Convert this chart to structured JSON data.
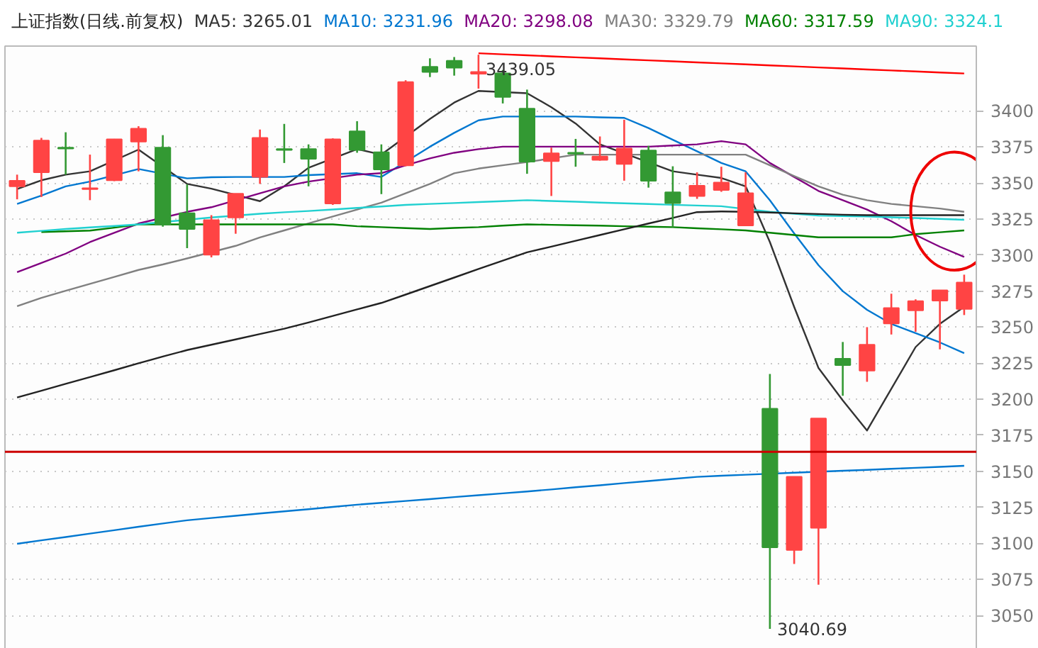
{
  "chart_data": {
    "type": "candlestick",
    "title": "上证指数(日线.前复权)",
    "grid": "y",
    "tick_labels": "y",
    "line_style": "solid",
    "categories": [
      null,
      null,
      null,
      null,
      null,
      null,
      null,
      null,
      null,
      null,
      null,
      null,
      null,
      null,
      null,
      null,
      null,
      null,
      null,
      null,
      null,
      null,
      null,
      null,
      null,
      null,
      null,
      null,
      null,
      null,
      null,
      null,
      null,
      null,
      null,
      null,
      null,
      null,
      null,
      null
    ],
    "ylim": [
      3021,
      3445
    ],
    "yticks": [
      3050,
      3075,
      3100,
      3125,
      3150,
      3175,
      3200,
      3225,
      3250,
      3275,
      3300,
      3325,
      3350,
      3375,
      3400
    ],
    "ohlc": [
      [
        3347.7,
        3355.8,
        3338.7,
        3351.6
      ],
      [
        3357.4,
        3381.3,
        3340.3,
        3379.4
      ],
      [
        3374.5,
        3385.2,
        3355.8,
        3373.9
      ],
      [
        3345.8,
        3369.7,
        3338.1,
        3346.4
      ],
      [
        3351.9,
        3380.6,
        3351.3,
        3380.3
      ],
      [
        3378.7,
        3389.4,
        3358.1,
        3387.7
      ],
      [
        3374.5,
        3383.2,
        3319.7,
        3321.3
      ],
      [
        3329.0,
        3349.0,
        3304.8,
        3318.1
      ],
      [
        3300.3,
        3327.7,
        3298.4,
        3324.2
      ],
      [
        3326.1,
        3342.6,
        3314.8,
        3342.6
      ],
      [
        3354.2,
        3387.1,
        3349.4,
        3381.3
      ],
      [
        3373.5,
        3391.0,
        3363.9,
        3372.9
      ],
      [
        3373.5,
        3376.8,
        3347.7,
        3366.8
      ],
      [
        3335.8,
        3381.0,
        3334.8,
        3380.3
      ],
      [
        3385.8,
        3392.9,
        3371.0,
        3372.9
      ],
      [
        3371.3,
        3376.8,
        3342.3,
        3359.4
      ],
      [
        3362.3,
        3421.3,
        3361.6,
        3420.0
      ],
      [
        3430.6,
        3436.5,
        3423.5,
        3427.1
      ],
      [
        3434.8,
        3437.4,
        3424.5,
        3430.0
      ],
      [
        3425.8,
        3439.05,
        3415.5,
        3427.1
      ],
      [
        3426.1,
        3428.4,
        3405.2,
        3409.7
      ],
      [
        3401.6,
        3414.8,
        3356.4,
        3364.8
      ],
      [
        3365.2,
        3374.5,
        3341.0,
        3370.6
      ],
      [
        3371.0,
        3380.6,
        3361.3,
        3370.3
      ],
      [
        3366.1,
        3382.3,
        3365.5,
        3368.4
      ],
      [
        3363.2,
        3393.9,
        3351.6,
        3373.9
      ],
      [
        3372.6,
        3375.8,
        3346.8,
        3351.6
      ],
      [
        3343.5,
        3361.6,
        3319.4,
        3336.1
      ],
      [
        3341.0,
        3357.4,
        3339.0,
        3348.1
      ],
      [
        3345.2,
        3361.3,
        3343.9,
        3350.3
      ],
      [
        3320.6,
        3357.4,
        3320.6,
        3342.9
      ],
      [
        3193.4,
        3217.5,
        3040.69,
        3097.3
      ],
      [
        3095.4,
        3146.2,
        3085.7,
        3146.2
      ],
      [
        3110.8,
        3186.7,
        3071.3,
        3186.7
      ],
      [
        3228.1,
        3239.7,
        3202.4,
        3223.6
      ],
      [
        3219.8,
        3250.0,
        3212.1,
        3237.8
      ],
      [
        3252.6,
        3273.2,
        3244.9,
        3263.2
      ],
      [
        3261.6,
        3269.3,
        3246.8,
        3268.1
      ],
      [
        3268.4,
        3275.5,
        3234.6,
        3275.5
      ],
      [
        3262.6,
        3286.4,
        3258.4,
        3280.9
      ]
    ],
    "colors": [
      "#ff4444",
      "#ff4444",
      "#339933",
      "#ff4444",
      "#ff4444",
      "#ff4444",
      "#339933",
      "#339933",
      "#ff4444",
      "#ff4444",
      "#ff4444",
      "#339933",
      "#339933",
      "#ff4444",
      "#339933",
      "#339933",
      "#ff4444",
      "#339933",
      "#339933",
      "#ff4444",
      "#339933",
      "#339933",
      "#ff4444",
      "#339933",
      "#ff4444",
      "#ff4444",
      "#339933",
      "#339933",
      "#ff4444",
      "#ff4444",
      "#ff4444",
      "#339933",
      "#ff4444",
      "#ff4444",
      "#339933",
      "#ff4444",
      "#ff4444",
      "#ff4444",
      "#ff4444",
      "#ff4444"
    ],
    "series": [
      {
        "type": "line",
        "name": "MA5: 3265.01",
        "color": "#333333",
        "values": [
          3345.8,
          3351.9,
          3355.8,
          3358.1,
          null,
          3373.2,
          null,
          3349.4,
          3346.1,
          null,
          3337.4,
          3347.7,
          3360.6,
          null,
          3373.5,
          3369.7,
          null,
          3394.5,
          3405.8,
          3413.9,
          null,
          3412.3,
          3402.6,
          3391.3,
          3376.8,
          null,
          null,
          3358.1,
          3355.8,
          3353.5,
          3347.7,
          3309,
          3264,
          3221.7,
          3199.2,
          3178.3,
          3207.2,
          3236.2,
          3252.3,
          3264.1
        ]
      },
      {
        "type": "line",
        "name": "MA10: 3231.96",
        "color": "#0077d0",
        "values": [
          3335.5,
          3341.3,
          3347.7,
          3351.0,
          null,
          3359.7,
          null,
          3353.2,
          3354.0,
          3354.2,
          null,
          3354.2,
          3355.5,
          null,
          3356.8,
          3354.2,
          null,
          3375.2,
          3384.8,
          3393.5,
          3396.1,
          null,
          3396.1,
          3396.1,
          3395.6,
          3395.2,
          3388.1,
          3380.0,
          3372.0,
          3363.9,
          3358.1,
          3338,
          3315,
          3293,
          3275,
          3262,
          3252.3,
          3245.8,
          3239.4,
          3232
        ]
      },
      {
        "type": "line",
        "name": "MA20: 3298.08",
        "color": "#800080",
        "values": [
          3288.1,
          3294.5,
          3301.0,
          3309.0,
          3315.5,
          3321.9,
          null,
          3330.0,
          3333.2,
          null,
          3342.9,
          3347.7,
          3351.0,
          null,
          3355.8,
          3356.8,
          3362.3,
          3367.1,
          3371.0,
          3373.5,
          3375.2,
          null,
          3375.2,
          3375.2,
          3375.2,
          3375.2,
          3375.2,
          3376.0,
          3376.8,
          3379.0,
          3376.8,
          3363.9,
          3354.2,
          3344.5,
          3338.1,
          3331.6,
          3323.5,
          3313.9,
          3305.8,
          3298.7
        ]
      },
      {
        "type": "line",
        "name": "MA30: 3329.79",
        "color": "#808080",
        "values": [
          3264.5,
          3270.3,
          3275.2,
          3280.0,
          3284.8,
          3289.7,
          3293.5,
          3297.7,
          null,
          3306.4,
          3312.3,
          3317.1,
          3322.0,
          3326.8,
          3331.6,
          3336.4,
          3342.9,
          3349.4,
          3356.8,
          3360.0,
          3362.3,
          3364.5,
          null,
          3369.7,
          3369.7,
          null,
          null,
          3369.7,
          3369.7,
          3369.7,
          3369.7,
          3362.3,
          3354.8,
          3347.7,
          3341.9,
          3338.1,
          3335.5,
          3333.9,
          3332.3,
          3330.0
        ]
      },
      {
        "type": "line",
        "name": "MA60: 3317.59",
        "color": "#008000",
        "values": [
          null,
          3316.0,
          3316.5,
          3317.0,
          3319.0,
          3321.3,
          3321.3,
          3321.3,
          null,
          3321.3,
          3321.3,
          3321.3,
          3321.3,
          3321.3,
          3320.0,
          3319.4,
          3318.7,
          3318.1,
          3318.8,
          3319.4,
          3320.4,
          3321.3,
          3321.0,
          3320.7,
          3320.4,
          3320.0,
          3319.7,
          3319.4,
          3318.6,
          3317.9,
          3317.1,
          3315.5,
          3313.9,
          3312.3,
          3312.3,
          3312.3,
          3312.3,
          3314.5,
          3315.8,
          3317.1
        ]
      },
      {
        "type": "line",
        "name": "MA90: 3324.1",
        "color": "#20d0d0",
        "values": [
          3315.5,
          3316.8,
          3318.1,
          3319.2,
          3320.2,
          3321.3,
          null,
          null,
          3326.1,
          null,
          3328.7,
          3329.7,
          3330.6,
          3331.6,
          3332.7,
          3333.7,
          3334.8,
          3335.5,
          3336.1,
          3336.8,
          3337.4,
          3338.1,
          3337.5,
          3337.0,
          3336.4,
          3335.9,
          3335.4,
          3334.9,
          3334.4,
          3333.9,
          null,
          3330.0,
          3328.7,
          3327.4,
          3327.1,
          3326.8,
          3326.2,
          3325.7,
          3325.1,
          3324.5
        ]
      },
      {
        "type": "line",
        "color": "#222222",
        "values": [
          3201.2,
          3205.9,
          3210.7,
          3215.4,
          3220.1,
          3224.9,
          3229.6,
          3234.1,
          3237.8,
          3241.5,
          3245.2,
          3248.9,
          3253.2,
          3257.8,
          3262.3,
          3266.8,
          3272.6,
          3278.5,
          3284.4,
          3290.4,
          3296.2,
          3301.9,
          3305.9,
          3309.9,
          3313.9,
          3317.9,
          3321.9,
          3325.8,
          3329.8,
          3330.3,
          3330.0,
          3329.5,
          3329.0,
          3328.5,
          3328.0,
          3327.7,
          3327.7,
          3327.7,
          3327.7,
          3327.7
        ]
      },
      {
        "type": "line",
        "color": "#0077d0",
        "values": [
          3099.7,
          3102.1,
          3104.4,
          3106.8,
          3109.1,
          3111.5,
          3113.8,
          3116.0,
          3117.6,
          3119.1,
          3120.7,
          3122.2,
          3123.7,
          3125.3,
          3126.8,
          3128.1,
          3129.4,
          3130.7,
          3132.1,
          3133.4,
          3134.7,
          3136.0,
          3137.4,
          3138.9,
          3140.3,
          3141.8,
          3143.2,
          3144.7,
          3146.1,
          3146.9,
          3147.6,
          null,
          3149.0,
          null,
          3150.4,
          3151.0,
          3151.7,
          3152.4,
          3153.1,
          3153.8
        ]
      },
      {
        "type": "line",
        "color": "#ff0000",
        "values": [
          null,
          null,
          null,
          null,
          null,
          null,
          null,
          null,
          null,
          null,
          null,
          null,
          null,
          null,
          null,
          null,
          null,
          null,
          null,
          3440.0,
          3439.3,
          3438.6,
          3437.9,
          3437.2,
          3436.5,
          3435.8,
          3435.1,
          3434.4,
          3433.7,
          3433.0,
          3432.3,
          3431.6,
          3430.9,
          3430.2,
          3429.5,
          3428.8,
          3428.1,
          3427.4,
          3426.7,
          3426.0
        ]
      }
    ],
    "ref_lines": [
      {
        "axis": "y",
        "value": 3163.5,
        "color": "#cc0000",
        "line_style": "solid"
      }
    ],
    "annotations": [
      {
        "text": "3439.05",
        "y": 3439.05
      },
      "3040.69"
    ]
  }
}
